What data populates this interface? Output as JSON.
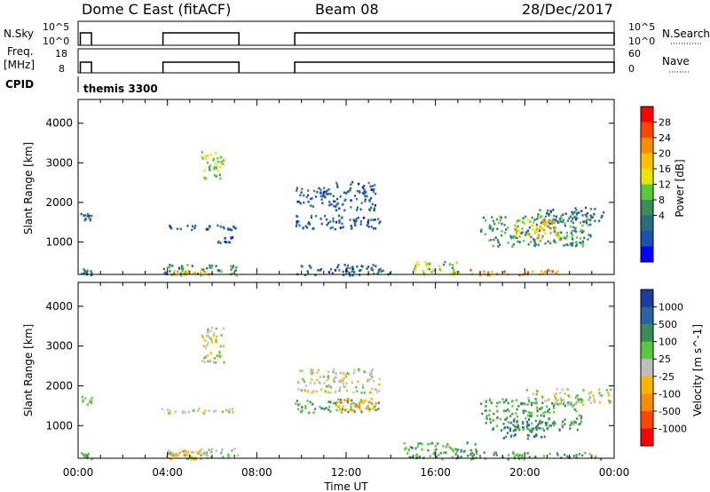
{
  "header": {
    "station": "Dome C East (fitACF)",
    "beam": "Beam 08",
    "date": "28/Dec/2017"
  },
  "status_panels": {
    "nsky": {
      "label": "N.Sky",
      "left_ticks": [
        "10^5",
        "10^0"
      ],
      "right_label": "N.Search",
      "right_ticks": [
        "10^5",
        "10^0"
      ]
    },
    "freq": {
      "label_line1": "Freq.",
      "label_line2": "[MHz]",
      "left_ticks": [
        "18",
        "8"
      ],
      "right_label": "Nave",
      "right_ticks": [
        "60",
        "0"
      ]
    },
    "cpid": {
      "label": "CPID",
      "value": "themis 3300"
    }
  },
  "x_axis": {
    "label": "Time UT",
    "ticks": [
      "00:00",
      "04:00",
      "08:00",
      "12:00",
      "16:00",
      "20:00",
      "00:00"
    ]
  },
  "chart_data": [
    {
      "type": "heatmap",
      "quantity": "Power",
      "unit": "dB",
      "ylabel": "Slant Range [km]",
      "xlabel": "Time UT",
      "x_range_hours": [
        0,
        24
      ],
      "ylim_km": [
        180,
        4600
      ],
      "yticks": [
        1000,
        2000,
        3000,
        4000
      ],
      "colorbar": {
        "label": "Power [dB]",
        "ticks": [
          "28",
          "24",
          "20",
          "16",
          "12",
          "8",
          "4"
        ],
        "colors": [
          "#ff0000",
          "#ff4500",
          "#ff8c00",
          "#ffc000",
          "#e8e400",
          "#5ac83c",
          "#3c8c5a",
          "#286e82",
          "#1e50b4",
          "#0000ff"
        ]
      },
      "echo_regions": [
        {
          "t0": 0.1,
          "t1": 0.6,
          "r0": 1550,
          "r1": 1750,
          "level": 8
        },
        {
          "t0": 0.1,
          "t1": 0.6,
          "r0": 180,
          "r1": 350,
          "level": 8
        },
        {
          "t0": 3.8,
          "t1": 7.2,
          "r0": 180,
          "r1": 450,
          "level": 12
        },
        {
          "t0": 4.0,
          "t1": 5.8,
          "r0": 180,
          "r1": 300,
          "level": 20
        },
        {
          "t0": 3.7,
          "t1": 7.1,
          "r0": 1330,
          "r1": 1450,
          "level": 8
        },
        {
          "t0": 6.2,
          "t1": 6.9,
          "r0": 1000,
          "r1": 1150,
          "level": 8
        },
        {
          "t0": 5.5,
          "t1": 6.5,
          "r0": 2600,
          "r1": 3300,
          "level": 16
        },
        {
          "t0": 9.7,
          "t1": 11.5,
          "r0": 1900,
          "r1": 2400,
          "level": 8
        },
        {
          "t0": 9.7,
          "t1": 13.5,
          "r0": 1350,
          "r1": 1700,
          "level": 8
        },
        {
          "t0": 11.5,
          "t1": 13.3,
          "r0": 1800,
          "r1": 2550,
          "level": 8
        },
        {
          "t0": 9.7,
          "t1": 14.0,
          "r0": 180,
          "r1": 450,
          "level": 8
        },
        {
          "t0": 15.0,
          "t1": 17.0,
          "r0": 200,
          "r1": 550,
          "level": 16
        },
        {
          "t0": 17.5,
          "t1": 21.5,
          "r0": 180,
          "r1": 320,
          "level": 24
        },
        {
          "t0": 18.0,
          "t1": 23.0,
          "r0": 900,
          "r1": 1700,
          "level": 12
        },
        {
          "t0": 20.5,
          "t1": 23.5,
          "r0": 1500,
          "r1": 1900,
          "level": 8
        },
        {
          "t0": 19.5,
          "t1": 21.5,
          "r0": 1100,
          "r1": 1600,
          "level": 20
        }
      ]
    },
    {
      "type": "heatmap",
      "quantity": "Velocity",
      "unit": "m s^-1",
      "ylabel": "Slant Range [km]",
      "xlabel": "Time UT",
      "x_range_hours": [
        0,
        24
      ],
      "ylim_km": [
        180,
        4600
      ],
      "yticks": [
        1000,
        2000,
        3000,
        4000
      ],
      "colorbar": {
        "label": "Velocity [m s^-1]",
        "ticks": [
          "1000",
          "500",
          "100",
          "25",
          "-25",
          "-100",
          "-500",
          "-1000"
        ],
        "colors": [
          "#1e3ca0",
          "#2864a0",
          "#3c8c5a",
          "#5ac83c",
          "#bebebe",
          "#ffb400",
          "#ff8c00",
          "#ff4500",
          "#ff0000"
        ]
      },
      "echo_regions": [
        {
          "t0": 0.1,
          "t1": 0.6,
          "r0": 1550,
          "r1": 1750,
          "level": 25
        },
        {
          "t0": 0.1,
          "t1": 0.6,
          "r0": 180,
          "r1": 350,
          "level": 100
        },
        {
          "t0": 3.8,
          "t1": 7.2,
          "r0": 180,
          "r1": 450,
          "level": 25
        },
        {
          "t0": 4.0,
          "t1": 5.5,
          "r0": 180,
          "r1": 400,
          "level": -100
        },
        {
          "t0": 3.7,
          "t1": 7.1,
          "r0": 1330,
          "r1": 1450,
          "level": 0
        },
        {
          "t0": 5.5,
          "t1": 6.5,
          "r0": 2600,
          "r1": 3500,
          "level": 0
        },
        {
          "t0": 9.7,
          "t1": 13.5,
          "r0": 1350,
          "r1": 1700,
          "level": 100
        },
        {
          "t0": 9.7,
          "t1": 13.5,
          "r0": 1850,
          "r1": 2450,
          "level": 0
        },
        {
          "t0": 11.5,
          "t1": 13.3,
          "r0": 1400,
          "r1": 1700,
          "level": -100
        },
        {
          "t0": 14.5,
          "t1": 18.0,
          "r0": 180,
          "r1": 600,
          "level": 100
        },
        {
          "t0": 17.5,
          "t1": 23.5,
          "r0": 180,
          "r1": 350,
          "level": 100
        },
        {
          "t0": 18.0,
          "t1": 22.5,
          "r0": 900,
          "r1": 1700,
          "level": 100
        },
        {
          "t0": 20.0,
          "t1": 23.8,
          "r0": 1550,
          "r1": 1950,
          "level": 0
        },
        {
          "t0": 19.0,
          "t1": 21.0,
          "r0": 700,
          "r1": 1200,
          "level": 500
        }
      ]
    }
  ]
}
